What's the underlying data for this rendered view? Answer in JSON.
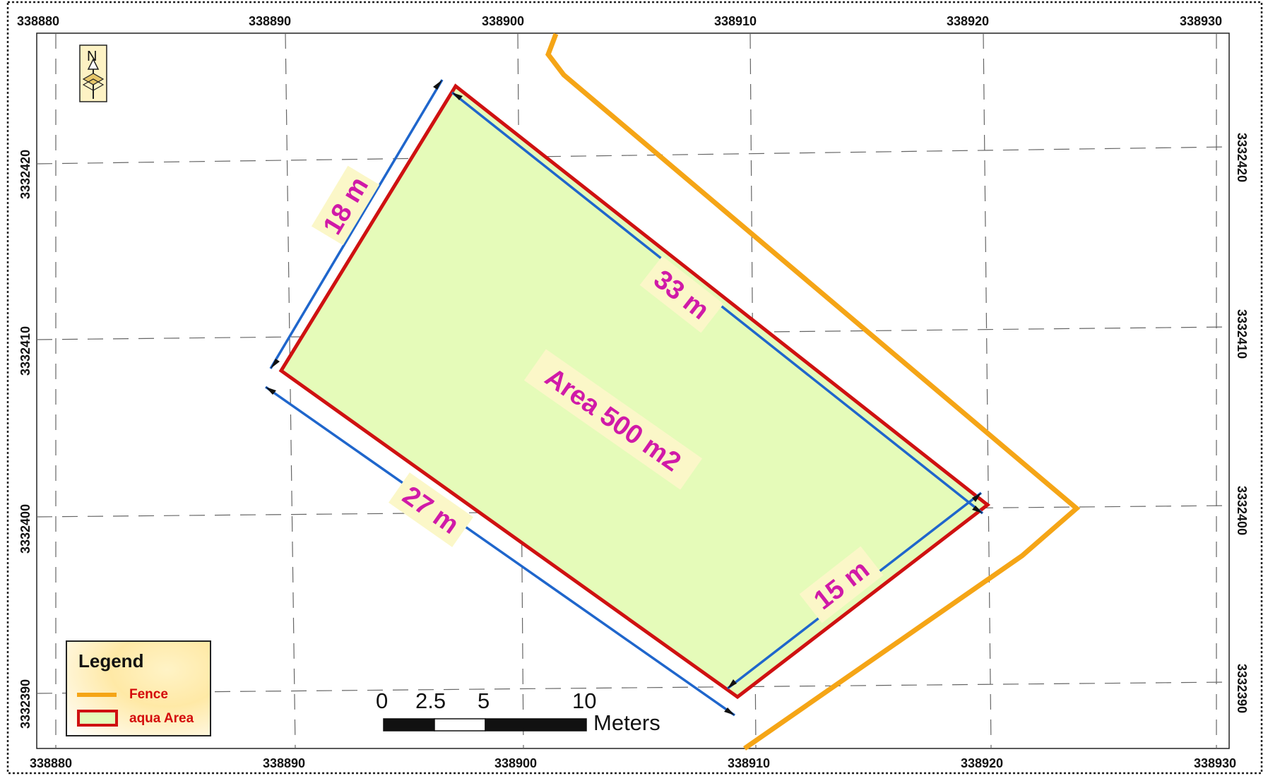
{
  "map": {
    "x_ticks": [
      "338880",
      "338890",
      "338900",
      "338910",
      "338920",
      "338930"
    ],
    "y_ticks": [
      "3332390",
      "3332400",
      "3332410",
      "3332420"
    ],
    "north_arrow": {
      "letter": "N",
      "icon": "north-arrow-icon"
    },
    "area_label": "Area 500 m2",
    "dimensions": [
      "18 m",
      "33 m",
      "27 m",
      "15 m"
    ],
    "scale_bar": {
      "labels": [
        "0",
        "2.5",
        "5",
        "10"
      ],
      "unit": "Meters"
    },
    "legend": {
      "title": "Legend",
      "items": [
        {
          "label": "Fence",
          "color": "#f5a516"
        },
        {
          "label": "aqua Area",
          "color": "#cf1111",
          "fill": "#e5fbb9"
        }
      ]
    },
    "colors": {
      "fence": "#f5a516",
      "area_outline": "#cf1111",
      "area_fill": "#e5fbb9",
      "dimension_line": "#1f66cc",
      "label_text": "#d01aa8",
      "label_bg": "#fbf7c8"
    }
  }
}
